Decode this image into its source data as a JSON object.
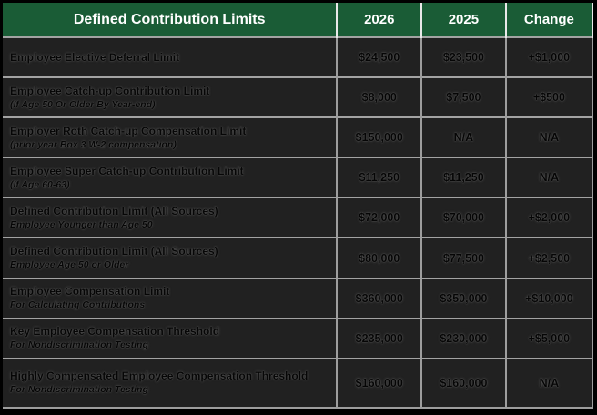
{
  "chart_data": {
    "type": "table",
    "title": "Defined Contribution Limits",
    "header": {
      "title": "Defined Contribution Limits",
      "cols": [
        "2026",
        "2025",
        "Change"
      ]
    },
    "rows": [
      {
        "label": "Employee Elective Deferral Limit",
        "sub": "",
        "values": [
          "$24,500",
          "$23,500",
          "+$1,000"
        ]
      },
      {
        "label": "Employee Catch-up Contribution Limit",
        "sub": "(If Age 50 Or Older By Year-end)",
        "values": [
          "$8,000",
          "$7,500",
          "+$500"
        ]
      },
      {
        "label": "Employer Roth Catch-up Compensation Limit",
        "sub": "(prior year Box 3 W-2 compensation)",
        "values": [
          "$150,000",
          "N/A",
          "N/A"
        ]
      },
      {
        "label": "Employee Super Catch-up Contribution Limit",
        "sub": "(If Age 60-63)",
        "values": [
          "$11,250",
          "$11,250",
          "N/A"
        ]
      },
      {
        "label": "Defined Contribution Limit (All Sources)",
        "sub": "Employee Younger than Age 50",
        "values": [
          "$72,000",
          "$70,000",
          "+$2,000"
        ]
      },
      {
        "label": "Defined Contribution Limit (All Sources)",
        "sub": "Employee Age 50 or Older",
        "values": [
          "$80,000",
          "$77,500",
          "+$2,500"
        ]
      },
      {
        "label": "Employee Compensation Limit",
        "sub": "For Calculating Contributions",
        "values": [
          "$360,000",
          "$350,000",
          "+$10,000"
        ]
      },
      {
        "label": "Key Employee Compensation Threshold",
        "sub": "For Nondiscrimination Testing",
        "values": [
          "$235,000",
          "$230,000",
          "+$5,000"
        ]
      },
      {
        "label": "Highly Compensated Employee Compensation Threshold",
        "sub": "For Nondiscrimination Testing",
        "values": [
          "$160,000",
          "$160,000",
          "N/A"
        ]
      }
    ],
    "layout_hints": {
      "grid": true,
      "header_position": "top"
    }
  },
  "colors": {
    "header_bg": "#1a5c36",
    "header_text": "#ffffff",
    "row_bg": "#212121",
    "row_text": "#060606",
    "gridline": "#9d9d9d",
    "frame": "#000000"
  }
}
